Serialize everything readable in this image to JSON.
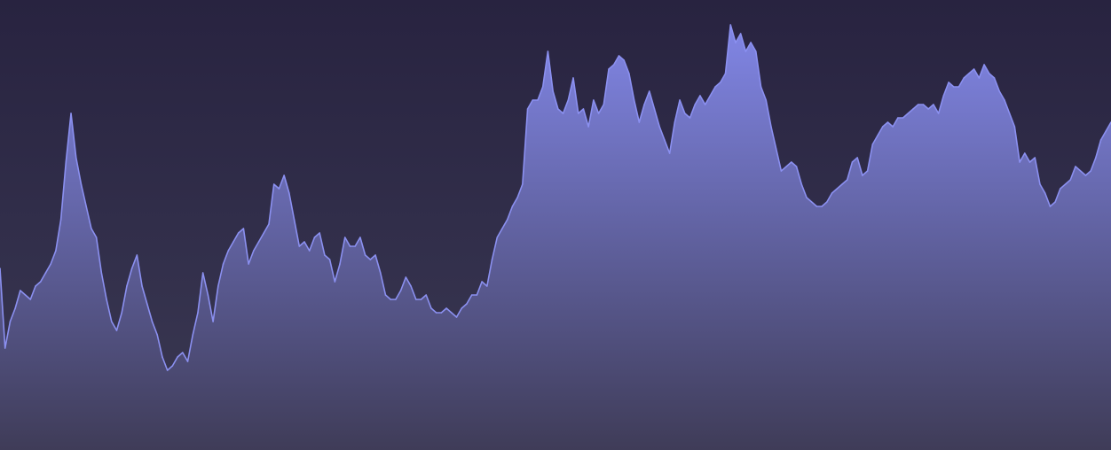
{
  "colors": {
    "background_top": "#282340",
    "background_bottom": "#3b3952",
    "line": "#8b90f0",
    "fill_top": "#8186e6",
    "fill_bottom": "#3f3c58"
  },
  "chart_data": {
    "type": "area",
    "title": "",
    "xlabel": "",
    "ylabel": "",
    "grid": false,
    "legend": "none",
    "ylim": [
      0,
      100
    ],
    "series": [
      {
        "values": [
          41,
          23,
          29,
          32,
          36,
          35,
          34,
          37,
          38,
          40,
          42,
          45,
          52,
          65,
          76,
          66,
          60,
          55,
          50,
          48,
          40,
          34,
          29,
          27,
          31,
          37,
          41,
          44,
          37,
          33,
          29,
          26,
          21,
          18,
          19,
          21,
          22,
          20,
          26,
          31,
          40,
          35,
          29,
          37,
          42,
          45,
          47,
          49,
          50,
          42,
          45,
          47,
          49,
          51,
          60,
          59,
          62,
          58,
          52,
          46,
          47,
          45,
          48,
          49,
          44,
          43,
          38,
          42,
          48,
          46,
          46,
          48,
          44,
          43,
          44,
          40,
          35,
          34,
          34,
          36,
          39,
          37,
          34,
          34,
          35,
          32,
          31,
          31,
          32,
          31,
          30,
          32,
          33,
          35,
          35,
          38,
          37,
          43,
          48,
          50,
          52,
          55,
          57,
          60,
          77,
          79,
          79,
          82,
          90,
          81,
          77,
          76,
          79,
          84,
          76,
          77,
          73,
          79,
          76,
          78,
          86,
          87,
          89,
          88,
          85,
          79,
          74,
          78,
          81,
          77,
          73,
          70,
          67,
          74,
          79,
          76,
          75,
          78,
          80,
          78,
          80,
          82,
          83,
          85,
          96,
          92,
          94,
          90,
          92,
          90,
          82,
          79,
          73,
          68,
          63,
          64,
          65,
          64,
          60,
          57,
          56,
          55,
          55,
          56,
          58,
          59,
          60,
          61,
          65,
          66,
          62,
          63,
          69,
          71,
          73,
          74,
          73,
          75,
          75,
          76,
          77,
          78,
          78,
          77,
          78,
          76,
          80,
          83,
          82,
          82,
          84,
          85,
          86,
          84,
          87,
          85,
          84,
          81,
          79,
          76,
          73,
          65,
          67,
          65,
          66,
          60,
          58,
          55,
          56,
          59,
          60,
          61,
          64,
          63,
          62,
          63,
          66,
          70,
          72,
          74
        ]
      }
    ]
  }
}
